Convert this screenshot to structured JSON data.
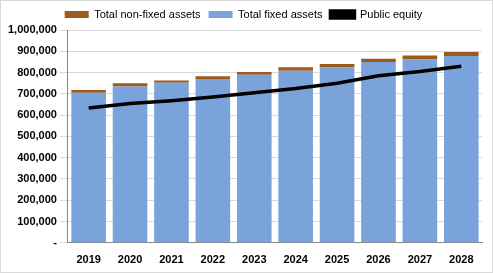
{
  "chart_data": {
    "type": "bar",
    "stacked": true,
    "legend": "top",
    "grid": true,
    "categories": [
      "2019",
      "2020",
      "2021",
      "2022",
      "2023",
      "2024",
      "2025",
      "2026",
      "2027",
      "2028"
    ],
    "series": [
      {
        "name": "Total non-fixed assets",
        "type": "bar",
        "color": "#9c5a1c",
        "values": [
          13000,
          15000,
          11000,
          13000,
          13000,
          17000,
          15000,
          15000,
          18000,
          19000
        ]
      },
      {
        "name": "Total fixed assets",
        "type": "bar",
        "color": "#7aa3db",
        "values": [
          705000,
          735000,
          752000,
          770000,
          790000,
          808000,
          825000,
          850000,
          862000,
          878000
        ]
      },
      {
        "name": "Public equity",
        "type": "line",
        "color": "#000000",
        "values": [
          633000,
          655000,
          668000,
          685000,
          705000,
          725000,
          750000,
          785000,
          805000,
          830000
        ]
      }
    ],
    "ylim": [
      0,
      1000000
    ],
    "yticks": [
      {
        "value": 0,
        "label": "-"
      },
      {
        "value": 100000,
        "label": "100,000"
      },
      {
        "value": 200000,
        "label": "200,000"
      },
      {
        "value": 300000,
        "label": "300,000"
      },
      {
        "value": 400000,
        "label": "400,000"
      },
      {
        "value": 500000,
        "label": "500,000"
      },
      {
        "value": 600000,
        "label": "600,000"
      },
      {
        "value": 700000,
        "label": "700,000"
      },
      {
        "value": 800000,
        "label": "800,000"
      },
      {
        "value": 900000,
        "label": "900,000"
      },
      {
        "value": 1000000,
        "label": "1,000,000"
      }
    ]
  }
}
